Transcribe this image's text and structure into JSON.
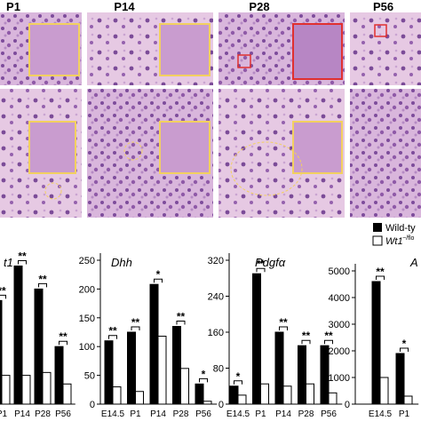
{
  "panels": {
    "labels": [
      "P1",
      "P14",
      "P28",
      "P56"
    ]
  },
  "legend": {
    "superscript": "−/flo"
  },
  "chart_data": [
    {
      "type": "bar",
      "title": "t1",
      "categories": [
        "P1",
        "P14",
        "P28",
        "P56"
      ],
      "ylim": [
        0,
        250
      ],
      "series": [
        {
          "name": "Wild-ty",
          "color": "#000000",
          "values": [
            180,
            240,
            200,
            100
          ]
        },
        {
          "name": "Wt1",
          "color": "#ffffff",
          "values": [
            50,
            50,
            55,
            35
          ]
        }
      ],
      "significance": [
        "**",
        "**",
        "**",
        "**"
      ]
    },
    {
      "type": "bar",
      "title": "Dhh",
      "categories": [
        "E14.5",
        "P1",
        "P14",
        "P28",
        "P56"
      ],
      "ylim": [
        0,
        250
      ],
      "yticks": [
        0,
        50,
        100,
        150,
        200,
        250
      ],
      "series": [
        {
          "color": "#000000",
          "values": [
            110,
            125,
            208,
            135,
            35
          ]
        },
        {
          "color": "#ffffff",
          "values": [
            30,
            22,
            118,
            62,
            5
          ]
        }
      ],
      "significance": [
        "**",
        "**",
        "*",
        "**",
        "*"
      ]
    },
    {
      "type": "bar",
      "title": "Pdgfα",
      "categories": [
        "E14.5",
        "P1",
        "P14",
        "P28",
        "P56"
      ],
      "ylim": [
        0,
        320
      ],
      "yticks": [
        0,
        80,
        160,
        240,
        320
      ],
      "series": [
        {
          "color": "#000000",
          "values": [
            40,
            290,
            160,
            130,
            130
          ]
        },
        {
          "color": "#ffffff",
          "values": [
            20,
            45,
            40,
            45,
            25
          ]
        }
      ],
      "significance": [
        "*",
        "**",
        "**",
        "**",
        "**"
      ]
    },
    {
      "type": "bar",
      "title": "A",
      "categories": [
        "E14.5",
        "P1"
      ],
      "ylim": [
        0,
        5000
      ],
      "yticks": [
        0,
        1000,
        2000,
        3000,
        4000,
        5000
      ],
      "series": [
        {
          "color": "#000000",
          "values": [
            4600,
            1900
          ]
        },
        {
          "color": "#ffffff",
          "values": [
            1000,
            300
          ]
        }
      ],
      "significance": [
        "**",
        "*"
      ]
    }
  ]
}
